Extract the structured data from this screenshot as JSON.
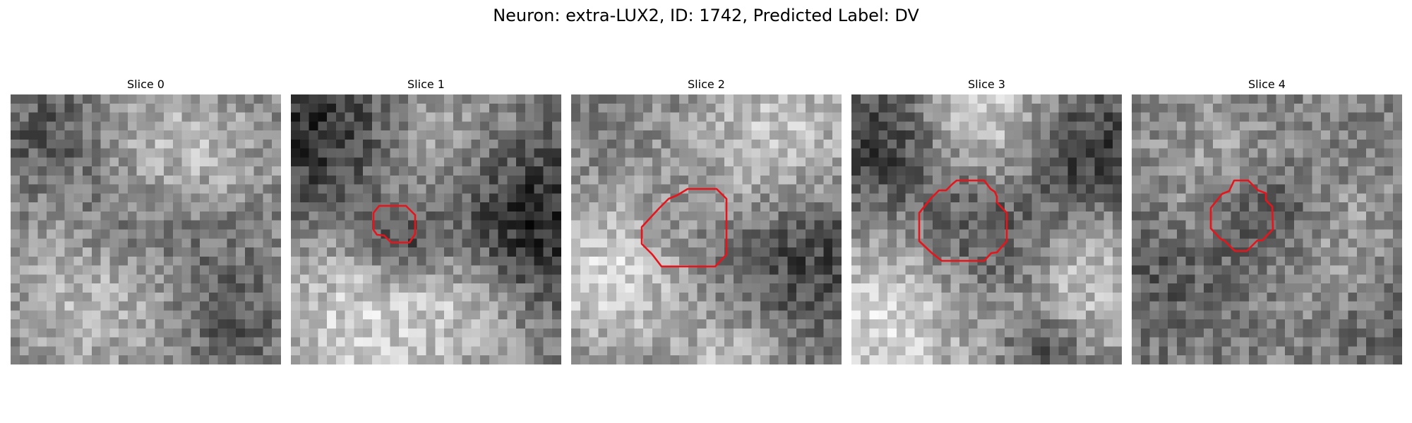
{
  "figure": {
    "title": "Neuron: extra-LUX2, ID: 1742, Predicted Label: DV"
  },
  "outline_color": "#e8141c",
  "slices": [
    {
      "title": "Slice 0",
      "has_outline": false,
      "seed": 11
    },
    {
      "title": "Slice 1",
      "has_outline": true,
      "seed": 23
    },
    {
      "title": "Slice 2",
      "has_outline": true,
      "seed": 37
    },
    {
      "title": "Slice 3",
      "has_outline": true,
      "seed": 41
    },
    {
      "title": "Slice 4",
      "has_outline": true,
      "seed": 59
    }
  ]
}
